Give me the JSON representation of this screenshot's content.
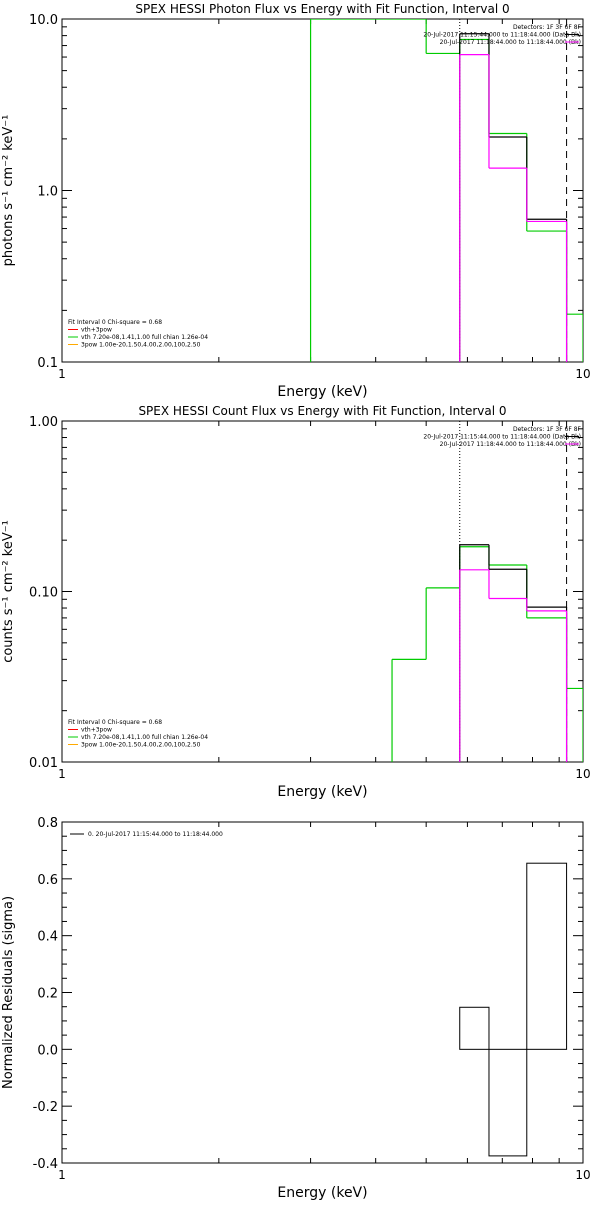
{
  "chart_data": [
    {
      "type": "line",
      "title": "SPEX HESSI Photon Flux vs Energy with Fit Function, Interval 0",
      "xlabel": "Energy (keV)",
      "ylabel": "photons s⁻¹ cm⁻² keV⁻¹",
      "xscale": "log",
      "yscale": "log",
      "xlim": [
        1,
        10
      ],
      "ylim": [
        0.1,
        10
      ],
      "xticklabels": [
        {
          "value": 1,
          "label": "1"
        },
        {
          "value": 10,
          "label": "10"
        }
      ],
      "yticklabels": [
        {
          "value": 0.1,
          "label": "0.1"
        },
        {
          "value": 1,
          "label": "1.0"
        },
        {
          "value": 10,
          "label": "10.0"
        }
      ],
      "header_lines": [
        "Detectors: 1F 3F 6F 8F",
        "20-Jul-2017 11:15:44.000 to 11:18:44.000 (Data-Bk)",
        "20-Jul-2017 11:18:44.000 to 11:18:44.000 (Bk)"
      ],
      "legend": {
        "placement": "bottom-left",
        "heading": "Fit Interval 0   Chi-square = 0.68",
        "entries": [
          {
            "label": "vth+3pow",
            "color": "#ff0000"
          },
          {
            "label": "vth 7.20e-08,1.41,1.00  full chian 1.26e-04",
            "color": "#00cc00"
          },
          {
            "label": "3pow 1.00e-20,1.50,4.00,2.00,100,2.50",
            "color": "#ffaa00"
          }
        ]
      },
      "vlines": [
        {
          "x": 5.8,
          "style": "dotted",
          "color": "#000000"
        },
        {
          "x": 9.3,
          "style": "dashed",
          "color": "#000000"
        }
      ],
      "series": [
        {
          "role": "fit-total",
          "color": "#00cc00",
          "edges": [
            3,
            5,
            5.8,
            6.6,
            7.8,
            9.3,
            10
          ],
          "values": [
            20,
            6.3,
            7.6,
            2.15,
            0.58,
            0.19
          ]
        },
        {
          "role": "data",
          "color": "#000000",
          "edges": [
            5.8,
            6.6,
            7.8,
            9.3
          ],
          "values": [
            8.2,
            2.05,
            0.68
          ]
        },
        {
          "role": "background",
          "color": "#ff00ff",
          "edges": [
            5.8,
            6.6,
            7.8,
            9.3
          ],
          "values": [
            6.2,
            1.35,
            0.66
          ]
        }
      ]
    },
    {
      "type": "line",
      "title": "SPEX HESSI Count Flux vs Energy with Fit Function, Interval 0",
      "xlabel": "Energy (keV)",
      "ylabel": "counts s⁻¹ cm⁻² keV⁻¹",
      "xscale": "log",
      "yscale": "log",
      "xlim": [
        1,
        10
      ],
      "ylim": [
        0.01,
        1
      ],
      "xticklabels": [
        {
          "value": 1,
          "label": "1"
        },
        {
          "value": 10,
          "label": "10"
        }
      ],
      "yticklabels": [
        {
          "value": 0.01,
          "label": "0.01"
        },
        {
          "value": 0.1,
          "label": "0.10"
        },
        {
          "value": 1,
          "label": "1.00"
        }
      ],
      "header_lines": [
        "Detectors: 1F 3F 6F 8F",
        "20-Jul-2017 11:15:44.000 to 11:18:44.000 (Data-Bk)",
        "20-Jul-2017 11:18:44.000 to 11:18:44.000 (Bk)"
      ],
      "legend": {
        "placement": "bottom-left",
        "heading": "Fit Interval 0   Chi-square = 0.68",
        "entries": [
          {
            "label": "vth+3pow",
            "color": "#ff0000"
          },
          {
            "label": "vth 7.20e-08,1.41,1.00  full chian 1.26e-04",
            "color": "#00cc00"
          },
          {
            "label": "3pow 1.00e-20,1.50,4.00,2.00,100,2.50",
            "color": "#ffaa00"
          }
        ]
      },
      "vlines": [
        {
          "x": 5.8,
          "style": "dotted",
          "color": "#000000"
        },
        {
          "x": 9.3,
          "style": "dashed",
          "color": "#000000"
        }
      ],
      "series": [
        {
          "role": "fit-total",
          "color": "#00cc00",
          "edges": [
            4.3,
            5,
            5.8,
            6.6,
            7.8,
            9.3,
            10
          ],
          "values": [
            0.04,
            0.105,
            0.183,
            0.143,
            0.07,
            0.027
          ]
        },
        {
          "role": "data",
          "color": "#000000",
          "edges": [
            5.8,
            6.6,
            7.8,
            9.3
          ],
          "values": [
            0.188,
            0.135,
            0.081
          ]
        },
        {
          "role": "background",
          "color": "#ff00ff",
          "edges": [
            5.8,
            6.6,
            7.8,
            9.3
          ],
          "values": [
            0.134,
            0.091,
            0.077
          ]
        }
      ]
    },
    {
      "type": "bar",
      "xlabel": "Energy (keV)",
      "ylabel": "Normalized Residuals (sigma)",
      "xscale": "log",
      "yscale": "linear",
      "xlim": [
        1,
        10
      ],
      "ylim": [
        -0.4,
        0.8
      ],
      "xticklabels": [
        {
          "value": 1,
          "label": "1"
        },
        {
          "value": 10,
          "label": "10"
        }
      ],
      "yticklabels": [
        {
          "value": -0.4,
          "label": "-0.4"
        },
        {
          "value": -0.2,
          "label": "-0.2"
        },
        {
          "value": 0.0,
          "label": "0.0"
        },
        {
          "value": 0.2,
          "label": "0.2"
        },
        {
          "value": 0.4,
          "label": "0.4"
        },
        {
          "value": 0.6,
          "label": "0.6"
        },
        {
          "value": 0.8,
          "label": "0.8"
        }
      ],
      "legend": {
        "placement": "top-left",
        "entries": [
          {
            "label": "0. 20-Jul-2017 11:15:44.000 to 11:18:44.000",
            "color": "#000000"
          }
        ]
      },
      "series": [
        {
          "role": "residuals",
          "color": "#000000",
          "edges": [
            5.8,
            6.6,
            7.8,
            9.3
          ],
          "values": [
            0.148,
            -0.375,
            0.655
          ]
        }
      ]
    }
  ]
}
